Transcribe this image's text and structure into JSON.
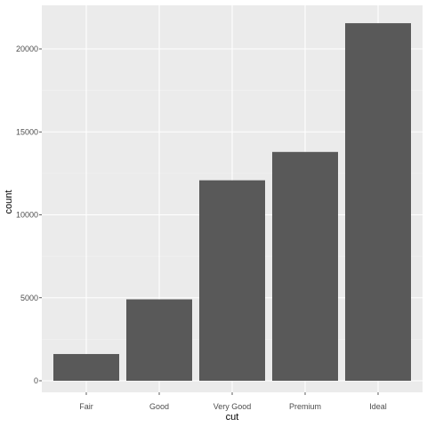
{
  "chart_data": {
    "type": "bar",
    "categories": [
      "Fair",
      "Good",
      "Very Good",
      "Premium",
      "Ideal"
    ],
    "values": [
      1610,
      4906,
      12082,
      13791,
      21551
    ],
    "xlabel": "cut",
    "ylabel": "count",
    "ylim": [
      0,
      22628
    ],
    "y_ticks": [
      0,
      5000,
      10000,
      15000,
      20000
    ],
    "grid": true,
    "colors": {
      "panel_background": "#ebebeb",
      "grid_major": "#ffffff",
      "grid_minor": "#f5f5f5",
      "bar_fill": "#595959",
      "tick_text": "#4d4d4d",
      "tick_mark": "#333333"
    }
  }
}
